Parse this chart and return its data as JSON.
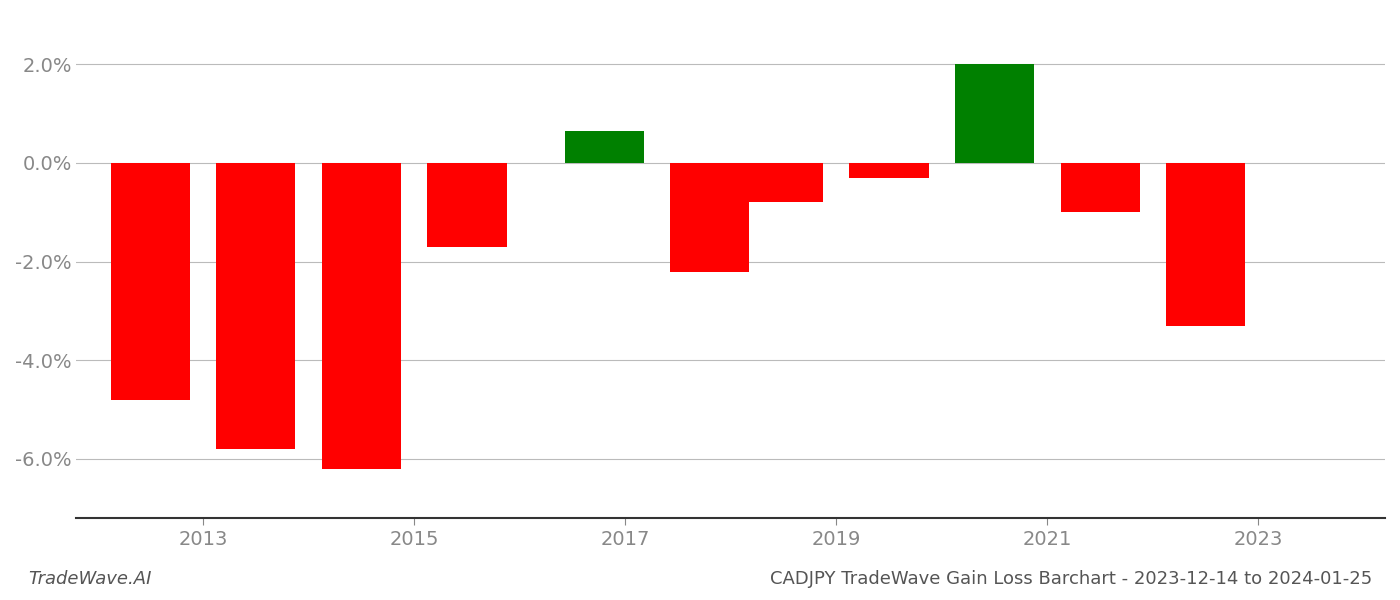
{
  "years": [
    2012.5,
    2013.5,
    2014.5,
    2015.5,
    2016.8,
    2017.8,
    2018.5,
    2019.5,
    2020.5,
    2021.5,
    2022.5
  ],
  "values": [
    -0.048,
    -0.058,
    -0.062,
    -0.017,
    0.0065,
    -0.022,
    -0.008,
    -0.003,
    0.02,
    -0.01,
    -0.033
  ],
  "colors": [
    "red",
    "red",
    "red",
    "red",
    "green",
    "red",
    "red",
    "red",
    "green",
    "red",
    "red"
  ],
  "ylim": [
    -0.072,
    0.03
  ],
  "yticks": [
    -0.06,
    -0.04,
    -0.02,
    0.0,
    0.02
  ],
  "xticks": [
    2013,
    2015,
    2017,
    2019,
    2021,
    2023
  ],
  "xlabel": "",
  "ylabel": "",
  "title": "CADJPY TradeWave Gain Loss Barchart - 2023-12-14 to 2024-01-25",
  "watermark": "TradeWave.AI",
  "bar_width": 0.75,
  "background_color": "#ffffff",
  "grid_color": "#bbbbbb",
  "axis_color": "#888888",
  "title_fontsize": 13,
  "tick_fontsize": 14,
  "watermark_fontsize": 13
}
